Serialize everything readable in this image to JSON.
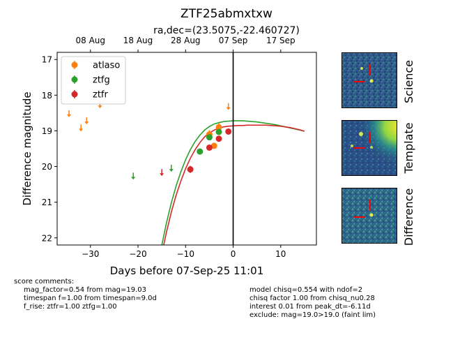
{
  "colors": {
    "atlaso": "#ff7f0e",
    "ztfg": "#2ca02c",
    "ztfr": "#d62728",
    "stamp_bg": "#2e5a8c",
    "marker": "#ff0000"
  },
  "chart_data": {
    "type": "scatter",
    "title": "ZTF25abmxtxw",
    "subtitle": "ra,dec=(23.5075,-22.460727)",
    "xlabel": "Days before 07-Sep-25 11:01",
    "ylabel": "Difference magnitude",
    "xlim": [
      -37,
      17.5
    ],
    "ylim": [
      22.2,
      16.8
    ],
    "y_inverted": true,
    "x_ticks": [
      -30,
      -20,
      -10,
      0,
      10
    ],
    "x_tick_labels": [
      "−30",
      "−20",
      "−10",
      "0",
      "10"
    ],
    "y_ticks": [
      17,
      18,
      19,
      20,
      21,
      22
    ],
    "y_tick_labels": [
      "17",
      "18",
      "19",
      "20",
      "21",
      "22"
    ],
    "top_axis_ticks": [
      {
        "x": -30,
        "label": "08 Aug"
      },
      {
        "x": -20,
        "label": "18 Aug"
      },
      {
        "x": -10,
        "label": "28 Aug"
      },
      {
        "x": 0,
        "label": "07 Sep"
      },
      {
        "x": 10,
        "label": "17 Sep"
      }
    ],
    "vertical_line_x": 0,
    "grid": false,
    "legend_position": "top-left",
    "series": [
      {
        "name": "atlaso",
        "color_key": "atlaso",
        "detections": [
          {
            "x": -5.0,
            "y": 19.1,
            "err": 0.12
          },
          {
            "x": -4.0,
            "y": 19.42,
            "err": 0.06
          },
          {
            "x": -3.0,
            "y": 18.9,
            "err": 0.12
          }
        ],
        "upper_limits": [
          {
            "x": -34.5,
            "y": 18.5
          },
          {
            "x": -32.0,
            "y": 18.9
          },
          {
            "x": -30.8,
            "y": 18.7
          },
          {
            "x": -28.0,
            "y": 18.25
          },
          {
            "x": -1.0,
            "y": 18.3
          }
        ]
      },
      {
        "name": "ztfg",
        "color_key": "ztfg",
        "detections": [
          {
            "x": -7.0,
            "y": 19.58,
            "err": 0.07
          },
          {
            "x": -5.0,
            "y": 19.18,
            "err": 0.07
          },
          {
            "x": -3.0,
            "y": 19.03,
            "err": 0.07
          }
        ],
        "upper_limits": [
          {
            "x": -21.0,
            "y": 20.25
          },
          {
            "x": -13.0,
            "y": 20.03
          }
        ]
      },
      {
        "name": "ztfr",
        "color_key": "ztfr",
        "detections": [
          {
            "x": -9.0,
            "y": 20.08,
            "err": 0.1
          },
          {
            "x": -5.0,
            "y": 19.47,
            "err": 0.07
          },
          {
            "x": -3.0,
            "y": 19.22,
            "err": 0.07
          },
          {
            "x": -1.0,
            "y": 19.02,
            "err": 0.07
          }
        ],
        "upper_limits": [
          {
            "x": -15.0,
            "y": 20.15
          }
        ]
      }
    ],
    "model_curves": [
      {
        "name": "ztfg",
        "color_key": "ztfg",
        "points": [
          [
            -15.0,
            22.2
          ],
          [
            -14,
            21.57
          ],
          [
            -13,
            21.02
          ],
          [
            -12,
            20.55
          ],
          [
            -11,
            20.15
          ],
          [
            -10,
            19.81
          ],
          [
            -9,
            19.53
          ],
          [
            -8,
            19.3
          ],
          [
            -7,
            19.12
          ],
          [
            -6,
            18.98
          ],
          [
            -5,
            18.88
          ],
          [
            -4,
            18.81
          ],
          [
            -3,
            18.77
          ],
          [
            -2,
            18.74
          ],
          [
            -1,
            18.73
          ],
          [
            0,
            18.72
          ],
          [
            1,
            18.72
          ],
          [
            2,
            18.72
          ],
          [
            3,
            18.73
          ],
          [
            4,
            18.74
          ],
          [
            5,
            18.75
          ],
          [
            6,
            18.77
          ],
          [
            7,
            18.79
          ],
          [
            8,
            18.81
          ],
          [
            9,
            18.83
          ],
          [
            10,
            18.86
          ],
          [
            11,
            18.89
          ],
          [
            12,
            18.92
          ],
          [
            13,
            18.95
          ],
          [
            14,
            18.98
          ],
          [
            15,
            19.01
          ]
        ]
      },
      {
        "name": "ztfr",
        "color_key": "ztfr",
        "points": [
          [
            -14.6,
            22.2
          ],
          [
            -14,
            21.83
          ],
          [
            -13,
            21.28
          ],
          [
            -12,
            20.81
          ],
          [
            -11,
            20.41
          ],
          [
            -10,
            20.06
          ],
          [
            -9,
            19.77
          ],
          [
            -8,
            19.53
          ],
          [
            -7,
            19.33
          ],
          [
            -6,
            19.17
          ],
          [
            -5,
            19.06
          ],
          [
            -4,
            18.98
          ],
          [
            -3,
            18.92
          ],
          [
            -2,
            18.89
          ],
          [
            -1,
            18.87
          ],
          [
            0,
            18.86
          ],
          [
            1,
            18.85
          ],
          [
            2,
            18.85
          ],
          [
            3,
            18.84
          ],
          [
            4,
            18.84
          ],
          [
            5,
            18.84
          ],
          [
            6,
            18.84
          ],
          [
            7,
            18.84
          ],
          [
            8,
            18.85
          ],
          [
            9,
            18.86
          ],
          [
            10,
            18.87
          ],
          [
            11,
            18.89
          ],
          [
            12,
            18.91
          ],
          [
            13,
            18.94
          ],
          [
            14,
            18.97
          ],
          [
            15,
            19.01
          ]
        ]
      }
    ]
  },
  "stamps": [
    {
      "label": "Science"
    },
    {
      "label": "Template"
    },
    {
      "label": "Difference"
    }
  ],
  "comments": {
    "header": "score comments:",
    "left": [
      "mag_factor=0.54 from mag=19.03",
      "timespan f=1.00 from timespan=9.0d",
      "f_rise: ztfr=1.00 ztfg=1.00"
    ],
    "right": [
      "model chisq=0.554 with ndof=2",
      "chisq factor 1.00 from chisq_nu0.28",
      "interest 0.01 from peak_dt=-6.11d",
      "exclude: mag=19.0>19.0 (faint lim)"
    ]
  }
}
